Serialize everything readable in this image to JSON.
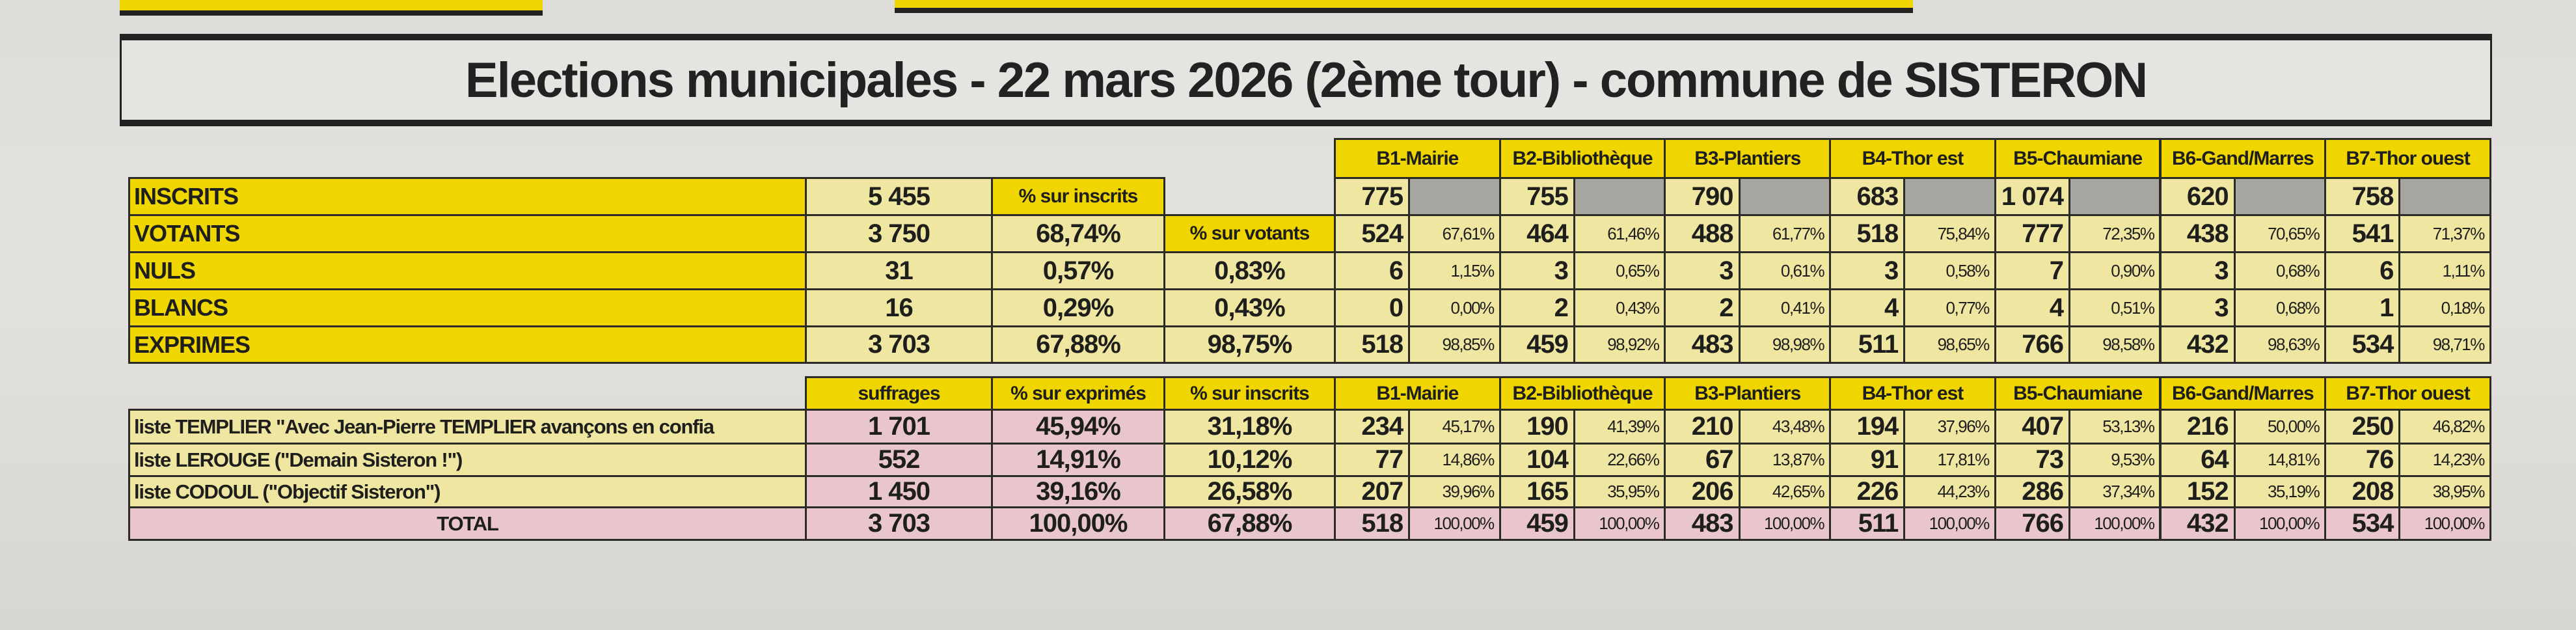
{
  "title": "Elections municipales - 22 mars 2026 (2ème tour) - commune de SISTERON",
  "colors": {
    "header_yellow": "#f0d600",
    "pale_yellow": "#efe6a2",
    "pink": "#e8c6cb",
    "grey": "#a8a6a1"
  },
  "bureaus": [
    "B1-Mairie",
    "B2-Bibliothèque",
    "B3-Plantiers",
    "B4-Thor est",
    "B5-Chaumiane",
    "B6-Gand/Marres",
    "B7-Thor ouest"
  ],
  "summary": {
    "header_pct_inscrits": "% sur inscrits",
    "header_pct_votants": "% sur votants",
    "rows": [
      {
        "label": "INSCRITS",
        "value": "5 455",
        "bureaus": [
          [
            "775",
            ""
          ],
          [
            "755",
            ""
          ],
          [
            "790",
            ""
          ],
          [
            "683",
            ""
          ],
          [
            "1 074",
            ""
          ],
          [
            "620",
            ""
          ],
          [
            "758",
            ""
          ]
        ]
      },
      {
        "label": "VOTANTS",
        "value": "3 750",
        "pct_inscrits": "68,74%",
        "bureaus": [
          [
            "524",
            "67,61%"
          ],
          [
            "464",
            "61,46%"
          ],
          [
            "488",
            "61,77%"
          ],
          [
            "518",
            "75,84%"
          ],
          [
            "777",
            "72,35%"
          ],
          [
            "438",
            "70,65%"
          ],
          [
            "541",
            "71,37%"
          ]
        ]
      },
      {
        "label": "NULS",
        "value": "31",
        "pct_inscrits": "0,57%",
        "pct_votants": "0,83%",
        "bureaus": [
          [
            "6",
            "1,15%"
          ],
          [
            "3",
            "0,65%"
          ],
          [
            "3",
            "0,61%"
          ],
          [
            "3",
            "0,58%"
          ],
          [
            "7",
            "0,90%"
          ],
          [
            "3",
            "0,68%"
          ],
          [
            "6",
            "1,11%"
          ]
        ]
      },
      {
        "label": "BLANCS",
        "value": "16",
        "pct_inscrits": "0,29%",
        "pct_votants": "0,43%",
        "bureaus": [
          [
            "0",
            "0,00%"
          ],
          [
            "2",
            "0,43%"
          ],
          [
            "2",
            "0,41%"
          ],
          [
            "4",
            "0,77%"
          ],
          [
            "4",
            "0,51%"
          ],
          [
            "3",
            "0,68%"
          ],
          [
            "1",
            "0,18%"
          ]
        ]
      },
      {
        "label": "EXPRIMES",
        "value": "3 703",
        "pct_inscrits": "67,88%",
        "pct_votants": "98,75%",
        "bureaus": [
          [
            "518",
            "98,85%"
          ],
          [
            "459",
            "98,92%"
          ],
          [
            "483",
            "98,98%"
          ],
          [
            "511",
            "98,65%"
          ],
          [
            "766",
            "98,58%"
          ],
          [
            "432",
            "98,63%"
          ],
          [
            "534",
            "98,71%"
          ]
        ]
      }
    ]
  },
  "lists": {
    "headers": [
      "suffrages",
      "% sur exprimés",
      "% sur inscrits"
    ],
    "rows": [
      {
        "label": "liste TEMPLIER \"Avec Jean-Pierre TEMPLIER avançons en confia",
        "suffrages": "1 701",
        "pct_exprimes": "45,94%",
        "pct_inscrits": "31,18%",
        "bureaus": [
          [
            "234",
            "45,17%"
          ],
          [
            "190",
            "41,39%"
          ],
          [
            "210",
            "43,48%"
          ],
          [
            "194",
            "37,96%"
          ],
          [
            "407",
            "53,13%"
          ],
          [
            "216",
            "50,00%"
          ],
          [
            "250",
            "46,82%"
          ]
        ]
      },
      {
        "label": "liste LEROUGE (\"Demain Sisteron !\")",
        "suffrages": "552",
        "pct_exprimes": "14,91%",
        "pct_inscrits": "10,12%",
        "bureaus": [
          [
            "77",
            "14,86%"
          ],
          [
            "104",
            "22,66%"
          ],
          [
            "67",
            "13,87%"
          ],
          [
            "91",
            "17,81%"
          ],
          [
            "73",
            "9,53%"
          ],
          [
            "64",
            "14,81%"
          ],
          [
            "76",
            "14,23%"
          ]
        ]
      },
      {
        "label": "liste CODOUL (\"Objectif Sisteron\")",
        "suffrages": "1 450",
        "pct_exprimes": "39,16%",
        "pct_inscrits": "26,58%",
        "bureaus": [
          [
            "207",
            "39,96%"
          ],
          [
            "165",
            "35,95%"
          ],
          [
            "206",
            "42,65%"
          ],
          [
            "226",
            "44,23%"
          ],
          [
            "286",
            "37,34%"
          ],
          [
            "152",
            "35,19%"
          ],
          [
            "208",
            "38,95%"
          ]
        ]
      }
    ],
    "total": {
      "label": "TOTAL",
      "suffrages": "3 703",
      "pct_exprimes": "100,00%",
      "pct_inscrits": "67,88%",
      "bureaus": [
        [
          "518",
          "100,00%"
        ],
        [
          "459",
          "100,00%"
        ],
        [
          "483",
          "100,00%"
        ],
        [
          "511",
          "100,00%"
        ],
        [
          "766",
          "100,00%"
        ],
        [
          "432",
          "100,00%"
        ],
        [
          "534",
          "100,00%"
        ]
      ]
    }
  }
}
